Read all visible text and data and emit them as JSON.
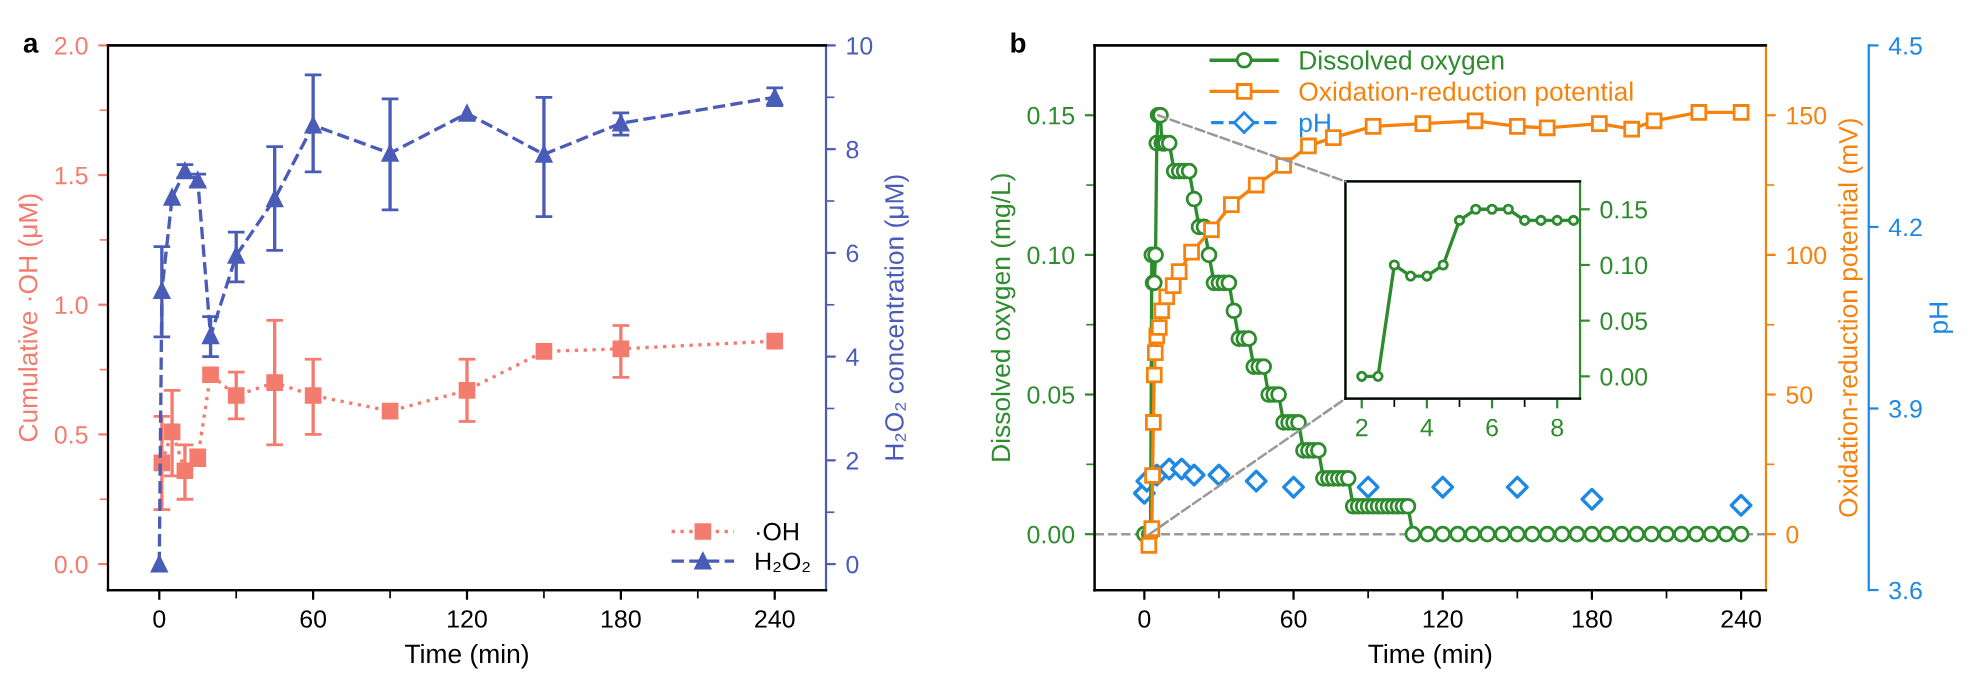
{
  "chart_data": [
    {
      "type": "line",
      "title": "a",
      "xlabel": "Time (min)",
      "ylabel": "Cumulative ·OH (μM)",
      "y2label": "H₂O₂ concentration (μM)",
      "xlim": [
        -20,
        260
      ],
      "xticks": [
        0,
        {
          "value": 30,
          "label": null
        },
        60,
        {
          "value": 90,
          "label": null
        },
        120,
        {
          "value": 150,
          "label": null
        },
        180,
        {
          "value": 210,
          "label": null
        },
        240
      ],
      "ylim": [
        -0.1,
        2.0
      ],
      "yticks": [
        {
          "value": 0,
          "label": "0.0"
        },
        {
          "value": 0.25,
          "label": null
        },
        {
          "value": 0.5,
          "label": "0.5"
        },
        {
          "value": 0.75,
          "label": null
        },
        {
          "value": 1,
          "label": "1.0"
        },
        {
          "value": 1.25,
          "label": null
        },
        {
          "value": 1.5,
          "label": "1.5"
        },
        {
          "value": 1.75,
          "label": null
        },
        {
          "value": 2,
          "label": "2.0"
        }
      ],
      "y2lim": [
        -0.5,
        10
      ],
      "y2ticks": [
        0,
        {
          "value": 1,
          "label": null
        },
        2,
        {
          "value": 3,
          "label": null
        },
        4,
        {
          "value": 5,
          "label": null
        },
        6,
        {
          "value": 7,
          "label": null
        },
        8,
        {
          "value": 9,
          "label": null
        },
        10
      ],
      "legend": "bottom right",
      "series": [
        {
          "name": "·OH",
          "color": "#f47c6e",
          "marker": "square",
          "line_style": "dotted",
          "x": [
            1,
            5,
            10,
            15,
            20,
            30,
            45,
            60,
            90,
            120,
            150,
            180,
            240
          ],
          "values": [
            0.39,
            0.51,
            0.36,
            0.41,
            0.73,
            0.65,
            0.7,
            0.65,
            0.59,
            0.67,
            0.82,
            0.83,
            0.86
          ],
          "errors": [
            [
              0.21,
              0.57
            ],
            [
              0.34,
              0.67
            ],
            [
              0.25,
              0.46
            ],
            [
              0.38,
              0.44
            ],
            [
              0.71,
              0.75
            ],
            [
              0.56,
              0.74
            ],
            [
              0.46,
              0.94
            ],
            [
              0.5,
              0.79
            ],
            null,
            [
              0.55,
              0.79
            ],
            null,
            [
              0.72,
              0.92
            ],
            null
          ]
        },
        {
          "name": "H₂O₂",
          "color": "#4a5cb8",
          "axis": "y2",
          "marker": "triangle",
          "line_style": "dashed",
          "x": [
            0,
            1,
            5,
            10,
            15,
            20,
            30,
            45,
            60,
            90,
            120,
            150,
            180,
            240
          ],
          "values": [
            0,
            5.27,
            7.07,
            7.58,
            7.4,
            4.4,
            5.95,
            7.04,
            8.46,
            7.92,
            8.69,
            7.9,
            8.5,
            9.0
          ],
          "errors": [
            null,
            [
              4.38,
              6.12
            ],
            null,
            [
              7.45,
              7.7
            ],
            [
              7.28,
              7.52
            ],
            [
              4.0,
              4.77
            ],
            [
              5.44,
              6.4
            ],
            [
              6.05,
              8.05
            ],
            [
              7.56,
              9.43
            ],
            [
              6.83,
              8.97
            ],
            null,
            [
              6.7,
              9.0
            ],
            [
              8.27,
              8.7
            ],
            [
              8.84,
              9.18
            ]
          ]
        }
      ]
    },
    {
      "type": "line",
      "title": "b",
      "xlabel": "Time (min)",
      "ylabel": "Dissolved oxygen (mg/L)",
      "y2label": "Oxidation-reduction potential (mV)",
      "y3label": "pH",
      "xlim": [
        -20,
        250
      ],
      "xticks": [
        0,
        {
          "value": 30,
          "label": null
        },
        60,
        {
          "value": 90,
          "label": null
        },
        120,
        {
          "value": 150,
          "label": null
        },
        180,
        {
          "value": 210,
          "label": null
        },
        240
      ],
      "ylim": [
        -0.02,
        0.175
      ],
      "yticks": [
        {
          "value": 0,
          "label": "0.00"
        },
        {
          "value": 0.025,
          "label": null
        },
        {
          "value": 0.05,
          "label": "0.05"
        },
        {
          "value": 0.075,
          "label": null
        },
        {
          "value": 0.1,
          "label": "0.10"
        },
        {
          "value": 0.125,
          "label": null
        },
        {
          "value": 0.15,
          "label": "0.15"
        }
      ],
      "y2lim": [
        -20,
        175
      ],
      "y2ticks": [
        0,
        {
          "value": 25,
          "label": null
        },
        50,
        {
          "value": 75,
          "label": null
        },
        100,
        {
          "value": 125,
          "label": null
        },
        150
      ],
      "y3lim": [
        3.6,
        4.5
      ],
      "y3ticks": [
        {
          "value": 3.6,
          "label": "3.6"
        },
        {
          "value": 3.9,
          "label": "3.9"
        },
        {
          "value": 4.2,
          "label": "4.2"
        },
        {
          "value": 4.5,
          "label": "4.5"
        }
      ],
      "ref_lines": [
        {
          "axis": "y",
          "value": 0,
          "color": "#999999",
          "line_style": "dashed"
        }
      ],
      "legend": "top left",
      "series": [
        {
          "name": "Dissolved oxygen",
          "color": "#2e8b2e",
          "marker": "circle",
          "line_style": "solid",
          "x": [
            0,
            2,
            2.5,
            3,
            3.5,
            4,
            4.5,
            5,
            5.5,
            6,
            6.5,
            7,
            7.5,
            8,
            8.5,
            10,
            12,
            14,
            16,
            18,
            20,
            22,
            24,
            26,
            28,
            30,
            32,
            34,
            36,
            38,
            40,
            42,
            44,
            46,
            48,
            50,
            52,
            54,
            56,
            58,
            60,
            62,
            64,
            66,
            68,
            70,
            72,
            74,
            76,
            78,
            80,
            82,
            84,
            86,
            88,
            90,
            92,
            94,
            96,
            98,
            100,
            102,
            104,
            106,
            108,
            114,
            120,
            126,
            132,
            138,
            144,
            150,
            156,
            162,
            168,
            174,
            180,
            186,
            192,
            198,
            204,
            210,
            216,
            222,
            228,
            234,
            240
          ],
          "values": [
            0,
            0,
            0,
            0.1,
            0.09,
            0.09,
            0.1,
            0.14,
            0.15,
            0.15,
            0.15,
            0.14,
            0.14,
            0.14,
            0.14,
            0.14,
            0.13,
            0.13,
            0.13,
            0.13,
            0.12,
            0.11,
            0.11,
            0.1,
            0.09,
            0.09,
            0.09,
            0.09,
            0.08,
            0.07,
            0.07,
            0.07,
            0.06,
            0.06,
            0.06,
            0.05,
            0.05,
            0.05,
            0.04,
            0.04,
            0.04,
            0.04,
            0.03,
            0.03,
            0.03,
            0.03,
            0.02,
            0.02,
            0.02,
            0.02,
            0.02,
            0.02,
            0.01,
            0.01,
            0.01,
            0.01,
            0.01,
            0.01,
            0.01,
            0.01,
            0.01,
            0.01,
            0.01,
            0.01,
            0,
            0,
            0,
            0,
            0,
            0,
            0,
            0,
            0,
            0,
            0,
            0,
            0,
            0,
            0,
            0,
            0,
            0,
            0,
            0,
            0,
            0,
            0
          ]
        },
        {
          "name": "Oxidation-reduction potential",
          "color": "#f5820d",
          "axis": "y2",
          "marker": "square",
          "line_style": "solid",
          "x": [
            1.8,
            3,
            3.3,
            3.6,
            4,
            4.4,
            5,
            6,
            7,
            9,
            11.6,
            14,
            19,
            27,
            35,
            45,
            56,
            66,
            76,
            92,
            112,
            133,
            150,
            162,
            183,
            196,
            205,
            223,
            240
          ],
          "values": [
            -4,
            2,
            21,
            40,
            57,
            65,
            71,
            74,
            80,
            85,
            89,
            94,
            101,
            109,
            118,
            125,
            132,
            139,
            142,
            146,
            147,
            148,
            146,
            145.5,
            147,
            145,
            148,
            151,
            151
          ]
        },
        {
          "name": "pH",
          "color": "#1e88e5",
          "type": "scatter",
          "axis": "y3",
          "marker": "diamond",
          "line_style": "dashed",
          "x": [
            0,
            1,
            5,
            10,
            15,
            20,
            30,
            45,
            60,
            90,
            120,
            150,
            180,
            240
          ],
          "values": [
            3.76,
            3.78,
            3.79,
            3.8,
            3.8,
            3.79,
            3.79,
            3.78,
            3.77,
            3.77,
            3.77,
            3.77,
            3.75,
            3.74
          ]
        }
      ]
    },
    {
      "type": "line",
      "xlim": [
        1.5,
        8.7
      ],
      "xticks": [
        2,
        {
          "value": 3,
          "label": null
        },
        4,
        {
          "value": 5,
          "label": null
        },
        6,
        {
          "value": 7,
          "label": null
        },
        8
      ],
      "y2lim": [
        -0.02,
        0.175
      ],
      "y2ticks": [
        {
          "value": 0,
          "label": "0.00"
        },
        {
          "value": 0.05,
          "label": "0.05"
        },
        {
          "value": 0.1,
          "label": "0.10"
        },
        {
          "value": 0.15,
          "label": "0.15"
        }
      ],
      "series": [
        {
          "color": "#2e8b2e",
          "axis": "y2",
          "marker": "circle",
          "line_style": "solid",
          "x": [
            2,
            2.5,
            3,
            3.5,
            4,
            4.5,
            5,
            5.5,
            6,
            6.5,
            7,
            7.5,
            8,
            8.5
          ],
          "values": [
            0,
            0,
            0.1,
            0.09,
            0.09,
            0.1,
            0.14,
            0.15,
            0.15,
            0.15,
            0.14,
            0.14,
            0.14,
            0.14
          ]
        }
      ]
    }
  ]
}
